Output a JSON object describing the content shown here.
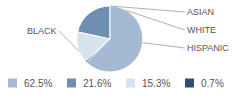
{
  "chart_data": {
    "type": "pie",
    "categories": [
      "BLACK",
      "HISPANIC",
      "WHITE",
      "ASIAN"
    ],
    "values": [
      62.5,
      21.6,
      15.3,
      0.7
    ],
    "value_labels": [
      "62.5%",
      "21.6%",
      "15.3%",
      "0.7%"
    ],
    "colors": [
      "#a3bad2",
      "#6f8fb2",
      "#d8e2ec",
      "#2f4e72"
    ]
  }
}
